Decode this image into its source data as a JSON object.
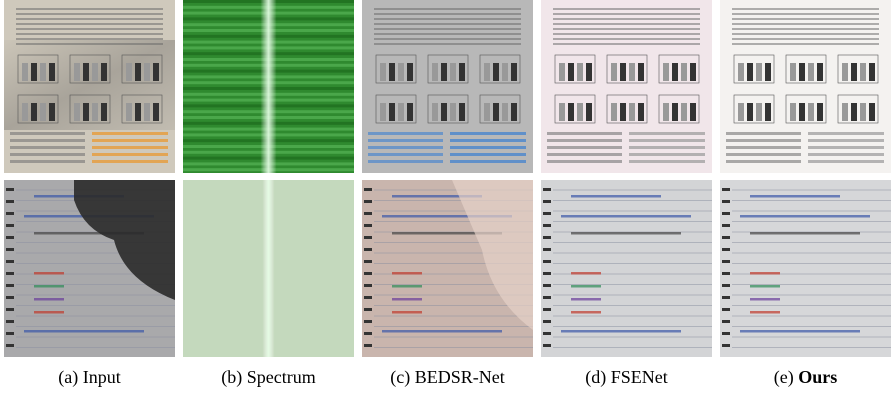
{
  "figure": {
    "captions": [
      {
        "prefix": "(a)",
        "name": "Input"
      },
      {
        "prefix": "(b)",
        "name": "Spectrum"
      },
      {
        "prefix": "(c)",
        "name": "BEDSR-Net"
      },
      {
        "prefix": "(d)",
        "name": "FSENet"
      },
      {
        "prefix": "(e)",
        "name": "Ours",
        "bold": true
      }
    ]
  }
}
